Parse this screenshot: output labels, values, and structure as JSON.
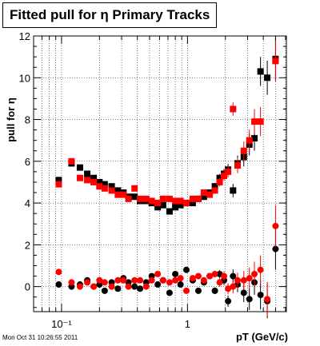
{
  "title": "Fitted pull for η  Primary Tracks",
  "timestamp": "Mon Oct 31 10:26:55 2011",
  "chart_data": {
    "type": "scatter",
    "title": "Fitted pull for η  Primary Tracks",
    "xlabel": "pT (GeV/c)",
    "ylabel": "pull for η",
    "x_scale": "log",
    "xlim": [
      0.06,
      6.1
    ],
    "ylim": [
      -1.2,
      12
    ],
    "grid": true,
    "xticks": [
      0.1,
      1
    ],
    "xtick_labels": [
      "10⁻¹",
      "1"
    ],
    "yticks": [
      0,
      2,
      4,
      6,
      8,
      10,
      12
    ],
    "ytick_labels": [
      "0",
      "2",
      "4",
      "6",
      "8",
      "10",
      "12"
    ],
    "colors": {
      "black": "#000000",
      "red": "#ff0000"
    },
    "series": [
      {
        "color": "black",
        "marker": "square",
        "points": [
          [
            0.095,
            5.1
          ],
          [
            0.12,
            5.9
          ],
          [
            0.14,
            5.7
          ],
          [
            0.16,
            5.4
          ],
          [
            0.18,
            5.2
          ],
          [
            0.2,
            5.0
          ],
          [
            0.22,
            4.9
          ],
          [
            0.25,
            4.8
          ],
          [
            0.28,
            4.6
          ],
          [
            0.31,
            4.5
          ],
          [
            0.34,
            4.3
          ],
          [
            0.38,
            4.3
          ],
          [
            0.42,
            4.1
          ],
          [
            0.47,
            4.1
          ],
          [
            0.52,
            4.0
          ],
          [
            0.58,
            3.8
          ],
          [
            0.64,
            3.9
          ],
          [
            0.72,
            3.6
          ],
          [
            0.8,
            3.8
          ],
          [
            0.88,
            3.9
          ],
          [
            0.98,
            4.0
          ],
          [
            1.1,
            4.0
          ],
          [
            1.22,
            4.2
          ],
          [
            1.35,
            4.3
          ],
          [
            1.5,
            4.5
          ],
          [
            1.65,
            4.8
          ],
          [
            1.8,
            5.2
          ],
          [
            1.95,
            5.4
          ],
          [
            2.1,
            5.6
          ],
          [
            2.3,
            4.6
          ],
          [
            2.5,
            5.9
          ],
          [
            2.8,
            6.2
          ],
          [
            3.1,
            6.8
          ],
          [
            3.4,
            7.1
          ],
          [
            3.8,
            10.3
          ],
          [
            4.3,
            10.0
          ],
          [
            5.0,
            10.9
          ]
        ]
      },
      {
        "color": "red",
        "marker": "square",
        "points": [
          [
            0.095,
            4.9
          ],
          [
            0.12,
            6.0
          ],
          [
            0.14,
            5.2
          ],
          [
            0.16,
            5.1
          ],
          [
            0.18,
            5.0
          ],
          [
            0.2,
            4.8
          ],
          [
            0.22,
            4.7
          ],
          [
            0.25,
            4.6
          ],
          [
            0.28,
            4.4
          ],
          [
            0.31,
            4.4
          ],
          [
            0.34,
            4.2
          ],
          [
            0.38,
            4.7
          ],
          [
            0.42,
            4.2
          ],
          [
            0.47,
            4.2
          ],
          [
            0.52,
            4.1
          ],
          [
            0.58,
            4.0
          ],
          [
            0.64,
            4.2
          ],
          [
            0.72,
            4.2
          ],
          [
            0.8,
            4.1
          ],
          [
            0.88,
            4.1
          ],
          [
            0.98,
            4.0
          ],
          [
            1.1,
            4.2
          ],
          [
            1.22,
            4.2
          ],
          [
            1.35,
            4.5
          ],
          [
            1.5,
            4.4
          ],
          [
            1.65,
            4.6
          ],
          [
            1.8,
            5.0
          ],
          [
            1.95,
            5.3
          ],
          [
            2.1,
            5.5
          ],
          [
            2.3,
            8.5
          ],
          [
            2.5,
            5.8
          ],
          [
            2.8,
            6.5
          ],
          [
            3.1,
            7.0
          ],
          [
            3.4,
            7.9
          ],
          [
            3.8,
            7.9
          ],
          [
            5.0,
            10.8
          ]
        ]
      },
      {
        "color": "black",
        "marker": "circle",
        "points": [
          [
            0.095,
            0.1
          ],
          [
            0.12,
            0.0
          ],
          [
            0.14,
            0.1
          ],
          [
            0.16,
            0.3
          ],
          [
            0.18,
            0.0
          ],
          [
            0.2,
            0.1
          ],
          [
            0.22,
            -0.2
          ],
          [
            0.25,
            0.2
          ],
          [
            0.28,
            -0.1
          ],
          [
            0.31,
            0.4
          ],
          [
            0.34,
            0.2
          ],
          [
            0.38,
            0.0
          ],
          [
            0.42,
            -0.1
          ],
          [
            0.47,
            0.2
          ],
          [
            0.52,
            0.5
          ],
          [
            0.58,
            0.1
          ],
          [
            0.64,
            0.3
          ],
          [
            0.72,
            -0.3
          ],
          [
            0.8,
            0.6
          ],
          [
            0.88,
            0.1
          ],
          [
            0.98,
            0.8
          ],
          [
            1.1,
            0.3
          ],
          [
            1.22,
            -0.2
          ],
          [
            1.35,
            0.2
          ],
          [
            1.5,
            0.5
          ],
          [
            1.65,
            -0.2
          ],
          [
            1.8,
            0.6
          ],
          [
            1.95,
            0.3
          ],
          [
            2.1,
            -0.7
          ],
          [
            2.3,
            0.5
          ],
          [
            2.5,
            0.1
          ],
          [
            2.8,
            -0.3
          ],
          [
            3.1,
            -0.6
          ],
          [
            3.4,
            0.2
          ],
          [
            3.8,
            -0.4
          ],
          [
            4.3,
            -0.7
          ],
          [
            5.0,
            1.8
          ]
        ]
      },
      {
        "color": "red",
        "marker": "circle",
        "points": [
          [
            0.095,
            0.7
          ],
          [
            0.12,
            0.2
          ],
          [
            0.14,
            0.0
          ],
          [
            0.16,
            0.2
          ],
          [
            0.18,
            0.0
          ],
          [
            0.2,
            0.3
          ],
          [
            0.22,
            0.2
          ],
          [
            0.25,
            0.0
          ],
          [
            0.28,
            0.3
          ],
          [
            0.31,
            0.3
          ],
          [
            0.34,
            0.0
          ],
          [
            0.38,
            0.3
          ],
          [
            0.42,
            0.3
          ],
          [
            0.47,
            0.0
          ],
          [
            0.52,
            0.3
          ],
          [
            0.58,
            0.6
          ],
          [
            0.64,
            0.3
          ],
          [
            0.72,
            0.2
          ],
          [
            0.8,
            0.3
          ],
          [
            0.88,
            0.4
          ],
          [
            0.98,
            -0.2
          ],
          [
            1.1,
            0.4
          ],
          [
            1.22,
            0.5
          ],
          [
            1.35,
            0.3
          ],
          [
            1.5,
            0.5
          ],
          [
            1.65,
            0.6
          ],
          [
            1.8,
            0.2
          ],
          [
            1.95,
            0.5
          ],
          [
            2.1,
            -0.1
          ],
          [
            2.3,
            0.0
          ],
          [
            2.5,
            0.3
          ],
          [
            2.8,
            0.3
          ],
          [
            3.1,
            0.4
          ],
          [
            3.4,
            0.6
          ],
          [
            3.8,
            0.8
          ],
          [
            4.3,
            -0.6
          ],
          [
            5.0,
            2.9
          ]
        ]
      }
    ]
  }
}
